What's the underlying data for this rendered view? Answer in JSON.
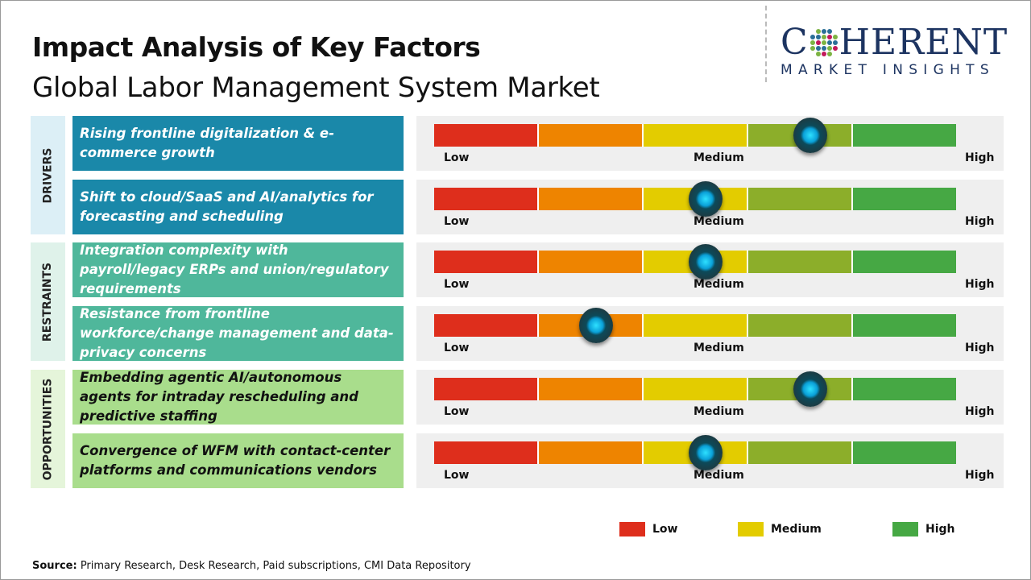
{
  "header": {
    "title": "Impact Analysis of Key Factors",
    "subtitle": "Global Labor Management System Market"
  },
  "logo": {
    "line1": "COHERENT",
    "line2": "MARKET INSIGHTS"
  },
  "scale": {
    "low": "Low",
    "medium": "Medium",
    "high": "High"
  },
  "colors": {
    "segments": [
      "#de2e1c",
      "#ee8400",
      "#e3cc00",
      "#8cae2a",
      "#46a844"
    ],
    "drivers": "#1a88a9",
    "restraints": "#4fb79b",
    "opportunities": "#a9dd8c"
  },
  "categories": [
    {
      "label": "DRIVERS",
      "factors": [
        {
          "text": "Rising frontline digitalization & e-commerce growth",
          "level": 0.72
        },
        {
          "text": "Shift to cloud/SaaS and AI/analytics for forecasting and scheduling",
          "level": 0.52
        }
      ]
    },
    {
      "label": "RESTRAINTS",
      "factors": [
        {
          "text": "Integration complexity with payroll/legacy ERPs and union/regulatory requirements",
          "level": 0.52
        },
        {
          "text": "Resistance from frontline workforce/change management and data-privacy concerns",
          "level": 0.31
        }
      ]
    },
    {
      "label": "OPPORTUNITIES",
      "factors": [
        {
          "text": "Embedding agentic AI/autonomous agents for intraday rescheduling and predictive staffing",
          "level": 0.72
        },
        {
          "text": "Convergence of WFM with contact-center platforms and communications vendors",
          "level": 0.52
        }
      ]
    }
  ],
  "legend": [
    {
      "label": "Low",
      "color": "#de2e1c"
    },
    {
      "label": "Medium",
      "color": "#e3cc00"
    },
    {
      "label": "High",
      "color": "#46a844"
    }
  ],
  "source": {
    "label": "Source:",
    "text": " Primary Research, Desk Research, Paid subscriptions, CMI Data Repository"
  }
}
